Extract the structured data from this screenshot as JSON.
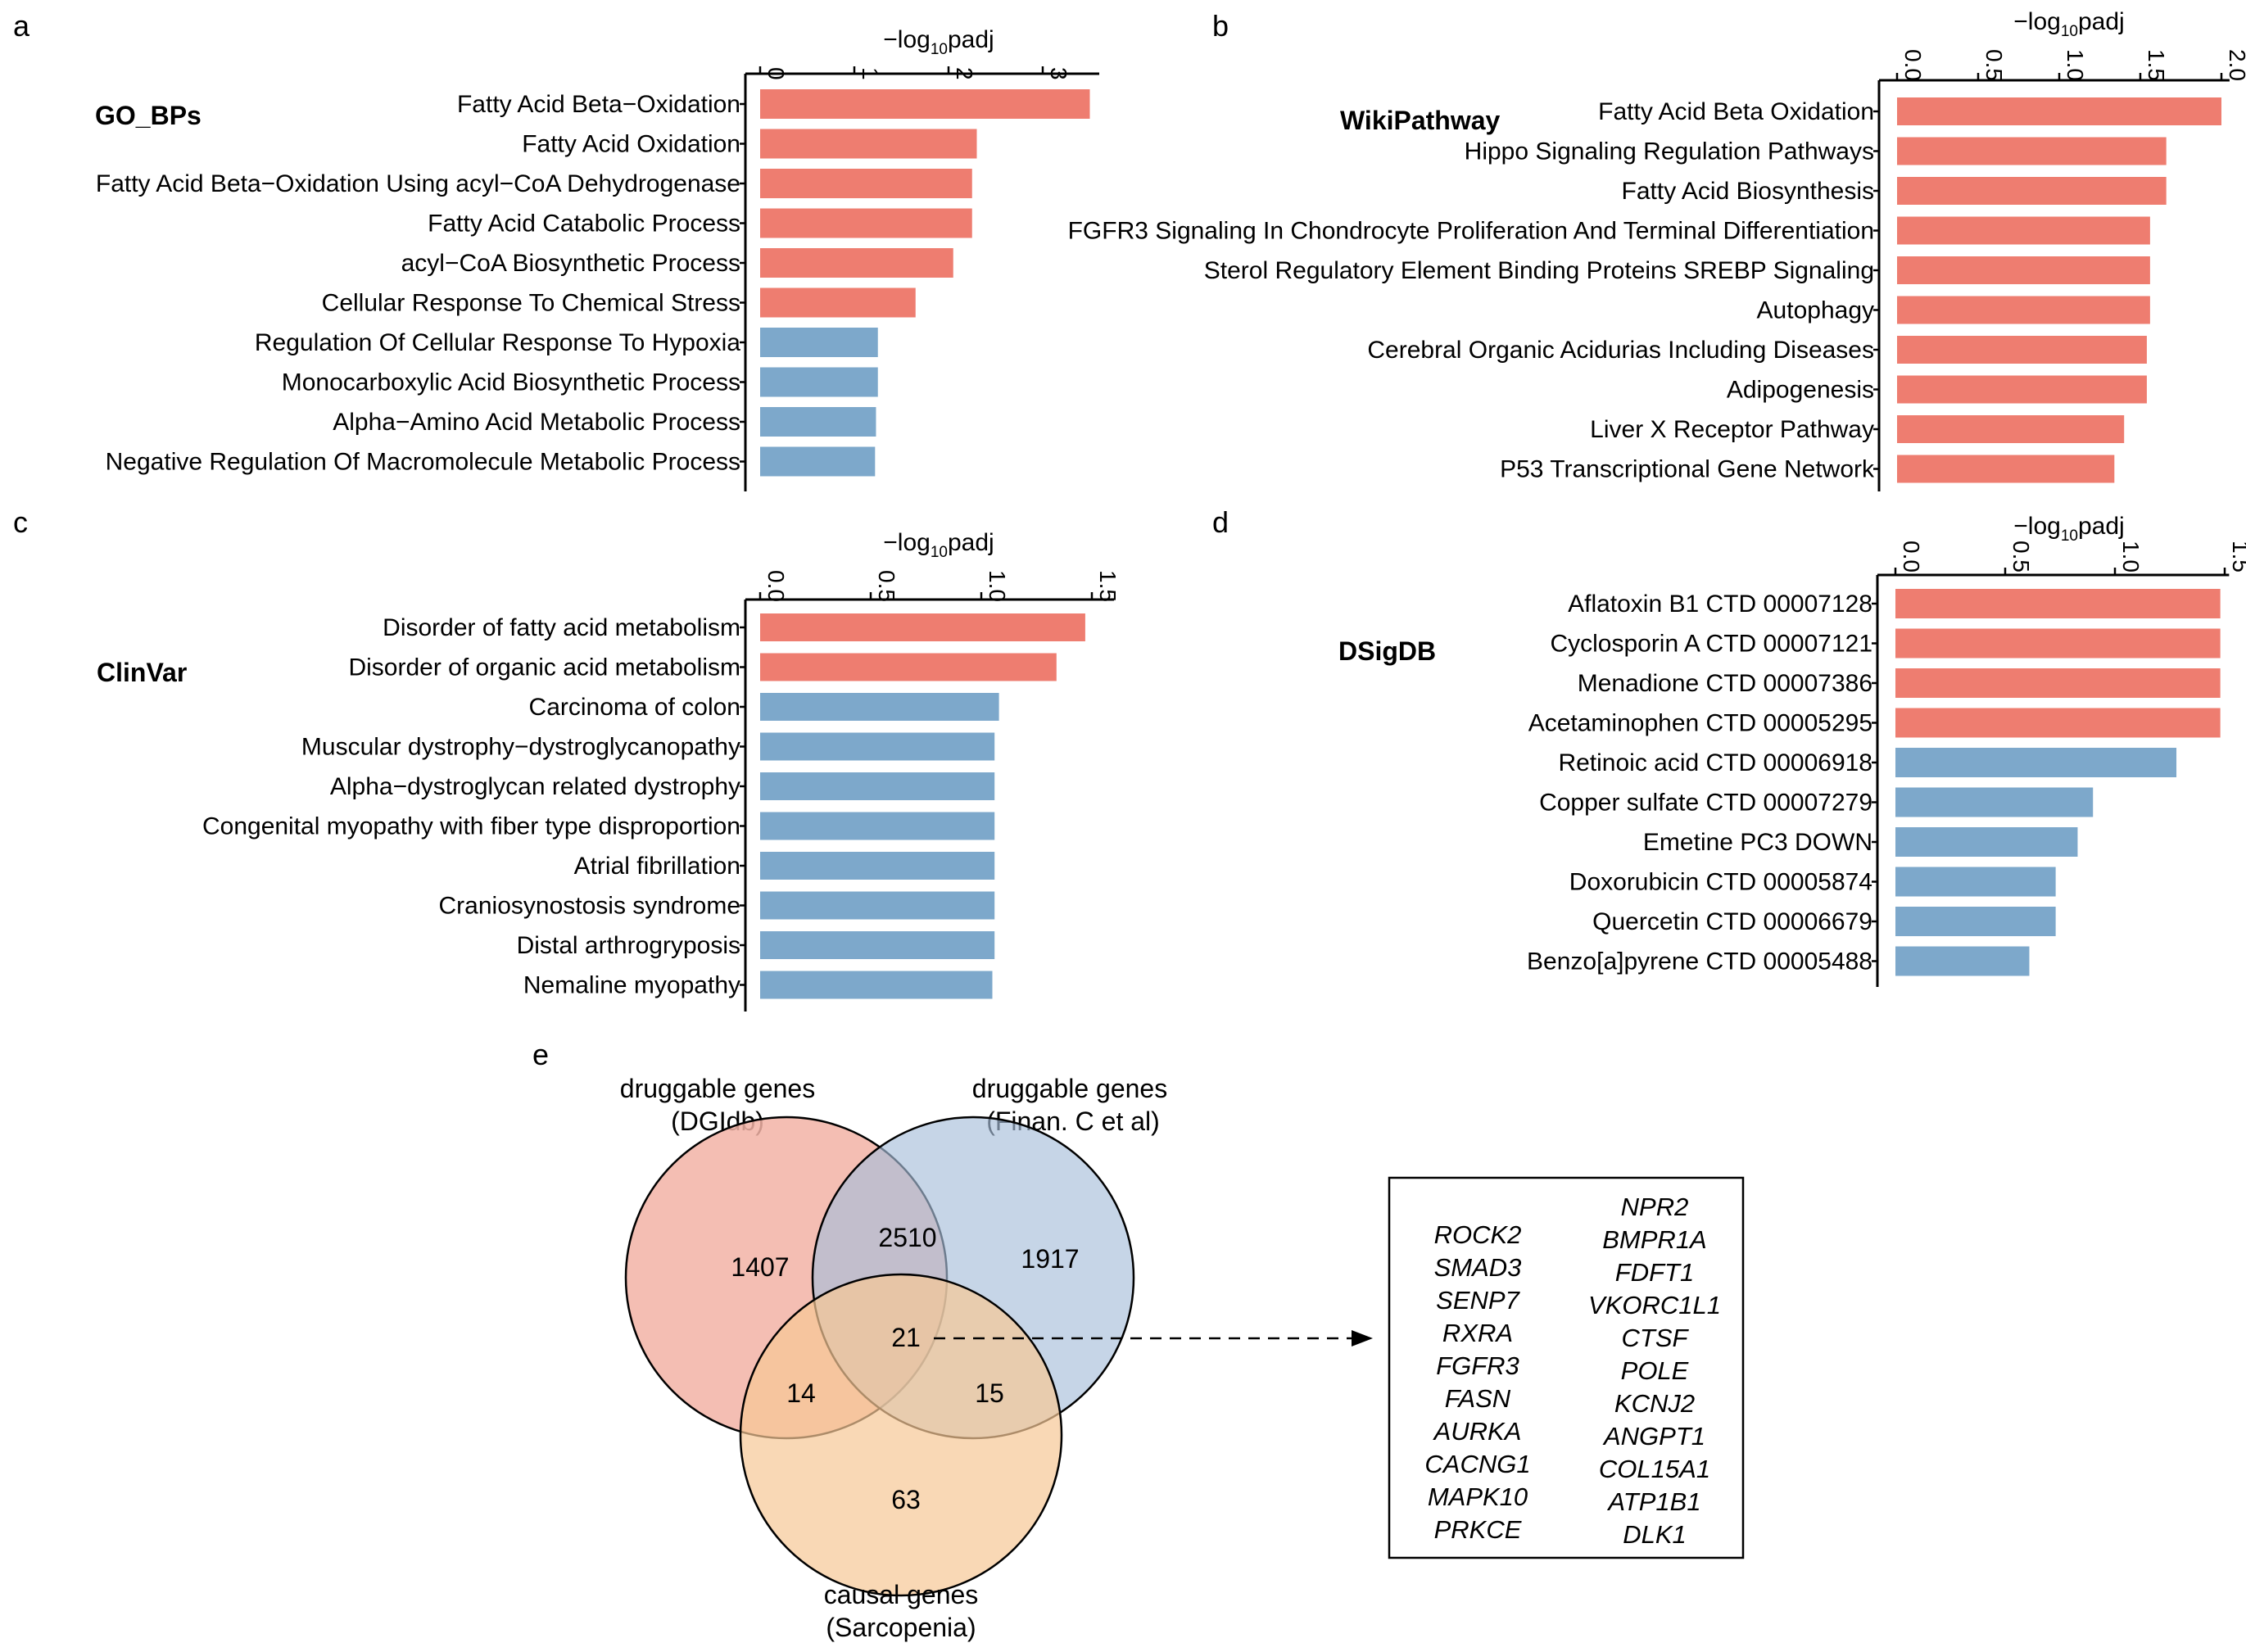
{
  "colors": {
    "red": "#EE7D70",
    "blue": "#7DA8CB",
    "circle_dgidb": "#F2B3A6",
    "circle_finan": "#A8BFDA",
    "circle_causal": "#F7C796"
  },
  "panels": [
    {
      "letter": "a",
      "db": "GO_BPs",
      "axis_title_main": "−log",
      "axis_title_sub": "10",
      "axis_title_tail": "padj"
    },
    {
      "letter": "b",
      "db": "WikiPathway",
      "axis_title_main": "−log",
      "axis_title_sub": "10",
      "axis_title_tail": "padj"
    },
    {
      "letter": "c",
      "db": "ClinVar",
      "axis_title_main": "−log",
      "axis_title_sub": "10",
      "axis_title_tail": "padj"
    },
    {
      "letter": "d",
      "db": "DSigDB",
      "axis_title_main": "−log",
      "axis_title_sub": "10",
      "axis_title_tail": "padj"
    }
  ],
  "chart_data": [
    {
      "type": "bar",
      "orientation": "horizontal",
      "title": "GO_BPs",
      "xlabel": "−log10padj",
      "xlim": [
        0,
        3.6
      ],
      "ticks": [
        0,
        1,
        2,
        3
      ],
      "tick_labels": [
        "0",
        "1",
        "2",
        "3"
      ],
      "categories": [
        "Fatty Acid Beta−Oxidation",
        "Fatty Acid Oxidation",
        "Fatty Acid Beta−Oxidation Using acyl−CoA Dehydrogenase",
        "Fatty Acid Catabolic Process",
        "acyl−CoA Biosynthetic Process",
        "Cellular Response To Chemical Stress",
        "Regulation Of Cellular Response To Hypoxia",
        "Monocarboxylic Acid Biosynthetic Process",
        "Alpha−Amino Acid Metabolic Process",
        "Negative Regulation Of Macromolecule Metabolic Process"
      ],
      "values": [
        3.5,
        2.3,
        2.25,
        2.25,
        2.05,
        1.65,
        1.25,
        1.25,
        1.23,
        1.22
      ],
      "bar_colors": [
        "red",
        "red",
        "red",
        "red",
        "red",
        "red",
        "blue",
        "blue",
        "blue",
        "blue"
      ]
    },
    {
      "type": "bar",
      "orientation": "horizontal",
      "title": "WikiPathway",
      "xlabel": "−log10padj",
      "xlim": [
        0,
        2.05
      ],
      "ticks": [
        0,
        0.5,
        1,
        1.5,
        2
      ],
      "tick_labels": [
        "0.0",
        "0.5",
        "1.0",
        "1.5",
        "2.0"
      ],
      "categories": [
        "Fatty Acid Beta Oxidation",
        "Hippo Signaling Regulation Pathways",
        "Fatty Acid Biosynthesis",
        "FGFR3 Signaling In Chondrocyte Proliferation And Terminal Differentiation",
        "Sterol Regulatory Element Binding Proteins SREBP Signaling",
        "Autophagy",
        "Cerebral Organic Acidurias Including Diseases",
        "Adipogenesis",
        "Liver X Receptor Pathway",
        "P53 Transcriptional Gene Network"
      ],
      "values": [
        2.0,
        1.66,
        1.66,
        1.56,
        1.56,
        1.56,
        1.54,
        1.54,
        1.4,
        1.34
      ],
      "bar_colors": [
        "red",
        "red",
        "red",
        "red",
        "red",
        "red",
        "red",
        "red",
        "red",
        "red"
      ]
    },
    {
      "type": "bar",
      "orientation": "horizontal",
      "title": "ClinVar",
      "xlabel": "−log10padj",
      "xlim": [
        0,
        1.6
      ],
      "ticks": [
        0,
        0.5,
        1,
        1.5
      ],
      "tick_labels": [
        "0.0",
        "0.5",
        "1.0",
        "1.5"
      ],
      "categories": [
        "Disorder of fatty acid metabolism",
        "Disorder of organic acid metabolism",
        "Carcinoma of colon",
        "Muscular dystrophy−dystroglycanopathy",
        "Alpha−dystroglycan related dystrophy",
        "Congenital myopathy with fiber type disproportion",
        "Atrial fibrillation",
        "Craniosynostosis syndrome",
        "Distal arthrogryposis",
        "Nemaline myopathy"
      ],
      "values": [
        1.47,
        1.34,
        1.08,
        1.06,
        1.06,
        1.06,
        1.06,
        1.06,
        1.06,
        1.05
      ],
      "bar_colors": [
        "red",
        "red",
        "blue",
        "blue",
        "blue",
        "blue",
        "blue",
        "blue",
        "blue",
        "blue"
      ]
    },
    {
      "type": "bar",
      "orientation": "horizontal",
      "title": "DSigDB",
      "xlabel": "−log10padj",
      "xlim": [
        0,
        1.52
      ],
      "ticks": [
        0,
        0.5,
        1,
        1.5
      ],
      "tick_labels": [
        "0.0",
        "0.5",
        "1.0",
        "1.5"
      ],
      "categories": [
        "Aflatoxin B1 CTD 00007128",
        "Cyclosporin A CTD 00007121",
        "Menadione CTD 00007386",
        "Acetaminophen CTD 00005295",
        "Retinoic acid CTD 00006918",
        "Copper sulfate CTD 00007279",
        "Emetine PC3 DOWN",
        "Doxorubicin CTD 00005874",
        "Quercetin CTD 00006679",
        "Benzo[a]pyrene CTD 00005488"
      ],
      "values": [
        1.48,
        1.48,
        1.48,
        1.48,
        1.28,
        0.9,
        0.83,
        0.73,
        0.73,
        0.61
      ],
      "bar_colors": [
        "red",
        "red",
        "red",
        "red",
        "blue",
        "blue",
        "blue",
        "blue",
        "blue",
        "blue"
      ]
    }
  ],
  "venn": {
    "letter": "e",
    "set_dgidb_line1": "druggable genes",
    "set_dgidb_line2": "(DGIdb)",
    "set_finan_line1": "druggable genes",
    "set_finan_line2": "(Finan. C et al)",
    "set_causal_line1": "causal genes",
    "set_causal_line2": "(Sarcopenia)",
    "counts": {
      "dgidb_only": "1407",
      "finan_only": "1917",
      "dgidb_finan": "2510",
      "all_three": "21",
      "dgidb_causal": "14",
      "finan_causal": "15",
      "causal_only": "63"
    }
  },
  "genes_left": [
    "ROCK2",
    "SMAD3",
    "SENP7",
    "RXRA",
    "FGFR3",
    "FASN",
    "AURKA",
    "CACNG1",
    "MAPK10",
    "PRKCE"
  ],
  "genes_right": [
    "NPR2",
    "BMPR1A",
    "FDFT1",
    "VKORC1L1",
    "CTSF",
    "POLE",
    "KCNJ2",
    "ANGPT1",
    "COL15A1",
    "ATP1B1",
    "DLK1"
  ]
}
